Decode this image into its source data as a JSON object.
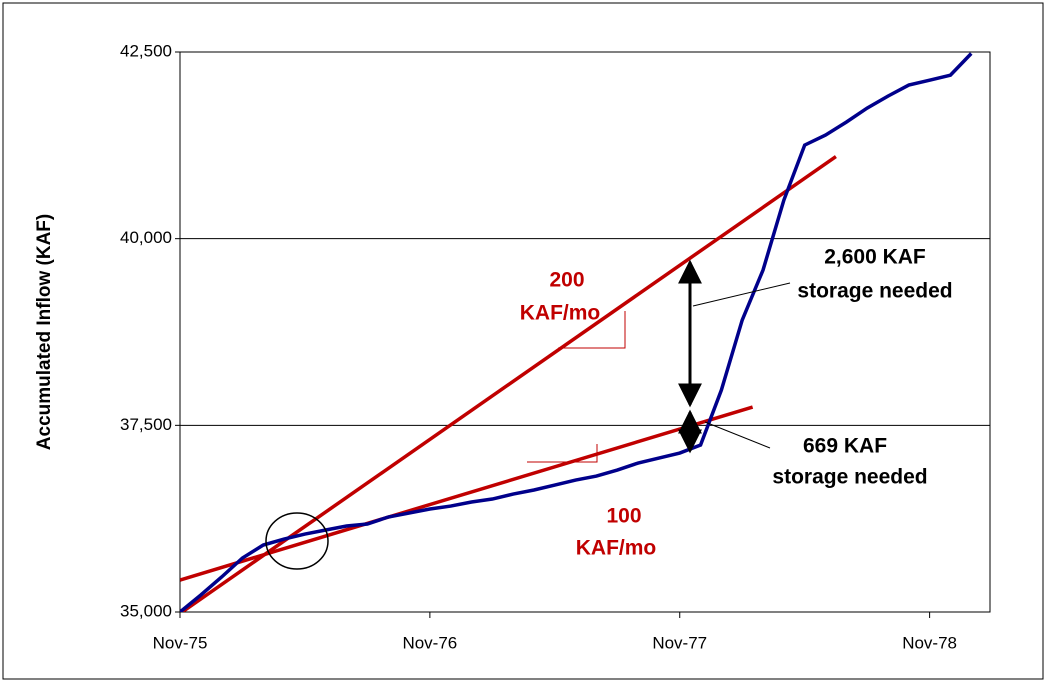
{
  "chart_data": {
    "type": "line",
    "ylabel": "Accumulated  Inflow (KAF)",
    "xlim": [
      0,
      38.9
    ],
    "xticks": [
      {
        "value": 0,
        "label": "Nov-75"
      },
      {
        "value": 12,
        "label": "Nov-76"
      },
      {
        "value": 24,
        "label": "Nov-77"
      },
      {
        "value": 36,
        "label": "Nov-78"
      }
    ],
    "ylim": [
      35000,
      42500
    ],
    "yticks": [
      {
        "value": 35000,
        "label": "35,000"
      },
      {
        "value": 37500,
        "label": "37,500"
      },
      {
        "value": 40000,
        "label": "40,000"
      },
      {
        "value": 42500,
        "label": "42,500"
      }
    ],
    "grid": true,
    "series": [
      {
        "name": "Accumulated Inflow",
        "color": "#00008b",
        "x": [
          0,
          1,
          2,
          3,
          4,
          5,
          6,
          7,
          8,
          9,
          10,
          11,
          12,
          13,
          14,
          15,
          16,
          17,
          18,
          19,
          20,
          21,
          22,
          23,
          24,
          25,
          26,
          27,
          28,
          29,
          30,
          31,
          32,
          33,
          34,
          35,
          36,
          37,
          38
        ],
        "values": [
          35000,
          35228,
          35469,
          35723,
          35897,
          35977,
          36044,
          36098,
          36152,
          36178,
          36272,
          36326,
          36379,
          36419,
          36473,
          36513,
          36580,
          36634,
          36700,
          36767,
          36821,
          36901,
          36995,
          37062,
          37129,
          37236,
          37973,
          38910,
          39580,
          40516,
          41253,
          41387,
          41561,
          41749,
          41909,
          42057,
          42123,
          42190,
          42480
        ]
      },
      {
        "name": "200 KAF/mo",
        "color": "#c00000",
        "x": [
          0,
          31.5
        ],
        "values": [
          34980,
          41100
        ]
      },
      {
        "name": "100 KAF/mo",
        "color": "#c00000",
        "x": [
          0,
          27.5
        ],
        "values": [
          35428,
          37745
        ]
      }
    ],
    "annotations": [
      "200",
      "KAF/mo",
      "100",
      "KAF/mo",
      "2,600 KAF",
      "storage needed",
      "669 KAF",
      "storage needed"
    ]
  }
}
